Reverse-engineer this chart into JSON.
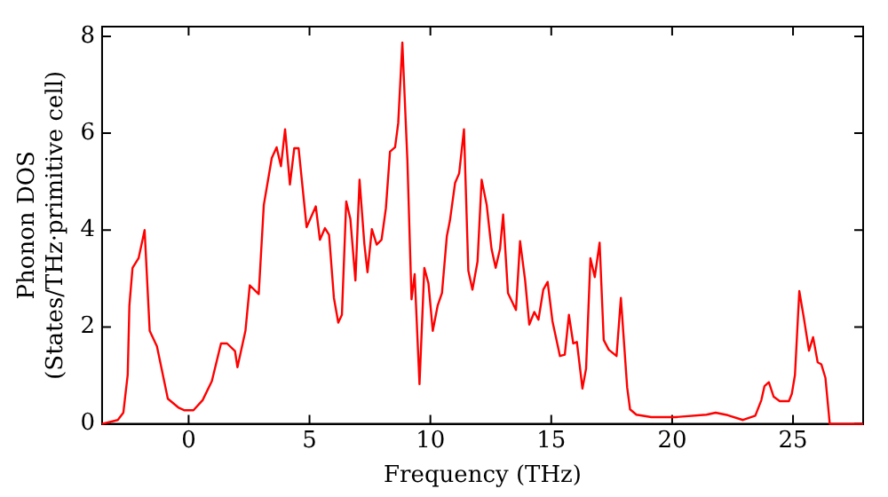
{
  "chart_data": {
    "type": "line",
    "xlabel": "Frequency (THz)",
    "ylabel": "Phonon DOS\n(States/THz·primitive cell)",
    "xlim": [
      -3.58,
      27.9
    ],
    "xticks": [
      0,
      5,
      10,
      15,
      20,
      25
    ],
    "ylim": [
      0,
      8.2
    ],
    "yticks": [
      0,
      2,
      4,
      6,
      8
    ],
    "grid": false,
    "legend": false,
    "marker": "none",
    "line_style": "solid",
    "series": [
      {
        "color": "#ff0000",
        "x": [
          -3.58,
          -2.93,
          -2.7,
          -2.52,
          -2.45,
          -2.32,
          -2.07,
          -1.82,
          -1.61,
          -1.31,
          -0.86,
          -0.43,
          -0.17,
          0.2,
          0.58,
          0.96,
          1.34,
          1.59,
          1.92,
          2.02,
          2.35,
          2.53,
          2.9,
          3.11,
          3.44,
          3.64,
          3.82,
          3.99,
          4.19,
          4.37,
          4.55,
          4.88,
          5.26,
          5.43,
          5.64,
          5.81,
          6.01,
          6.19,
          6.34,
          6.52,
          6.69,
          6.9,
          7.07,
          7.27,
          7.4,
          7.58,
          7.78,
          7.98,
          8.16,
          8.33,
          8.54,
          8.67,
          8.84,
          9.05,
          9.22,
          9.35,
          9.55,
          9.75,
          9.92,
          10.1,
          10.3,
          10.48,
          10.68,
          10.81,
          11.02,
          11.19,
          11.39,
          11.57,
          11.74,
          11.95,
          12.12,
          12.33,
          12.53,
          12.7,
          12.88,
          13.01,
          13.21,
          13.54,
          13.71,
          13.92,
          14.09,
          14.3,
          14.47,
          14.67,
          14.85,
          15.05,
          15.36,
          15.56,
          15.73,
          15.91,
          16.06,
          16.29,
          16.44,
          16.62,
          16.8,
          17.0,
          17.17,
          17.38,
          17.7,
          17.88,
          18.14,
          18.26,
          18.52,
          19.14,
          20.15,
          21.42,
          21.8,
          22.3,
          22.93,
          23.44,
          23.69,
          23.82,
          24.0,
          24.2,
          24.45,
          24.83,
          24.95,
          25.08,
          25.26,
          25.45,
          25.66,
          25.83,
          26.02,
          26.17,
          26.34,
          26.52,
          27.9
        ],
        "values": [
          0,
          0.08,
          0.23,
          1.01,
          2.44,
          3.22,
          3.42,
          4.0,
          1.92,
          1.6,
          0.52,
          0.34,
          0.28,
          0.28,
          0.49,
          0.88,
          1.66,
          1.66,
          1.5,
          1.17,
          1.92,
          2.86,
          2.68,
          4.52,
          5.49,
          5.71,
          5.32,
          6.08,
          4.94,
          5.69,
          5.69,
          4.06,
          4.49,
          3.8,
          4.04,
          3.9,
          2.6,
          2.09,
          2.25,
          4.59,
          4.23,
          2.96,
          5.04,
          3.71,
          3.13,
          4.02,
          3.7,
          3.8,
          4.45,
          5.62,
          5.71,
          6.21,
          7.87,
          5.43,
          2.57,
          3.09,
          0.82,
          3.22,
          2.9,
          1.92,
          2.44,
          2.7,
          3.87,
          4.2,
          4.97,
          5.17,
          6.08,
          3.16,
          2.77,
          3.35,
          5.04,
          4.52,
          3.61,
          3.22,
          3.61,
          4.32,
          2.7,
          2.35,
          3.77,
          2.96,
          2.05,
          2.31,
          2.15,
          2.77,
          2.93,
          2.12,
          1.4,
          1.43,
          2.25,
          1.66,
          1.69,
          0.73,
          1.14,
          3.42,
          3.03,
          3.74,
          1.73,
          1.53,
          1.4,
          2.6,
          0.75,
          0.3,
          0.19,
          0.14,
          0.14,
          0.19,
          0.23,
          0.18,
          0.08,
          0.17,
          0.49,
          0.78,
          0.86,
          0.56,
          0.47,
          0.47,
          0.62,
          1.01,
          2.74,
          2.18,
          1.51,
          1.79,
          1.27,
          1.23,
          0.95,
          0,
          0
        ]
      }
    ]
  }
}
